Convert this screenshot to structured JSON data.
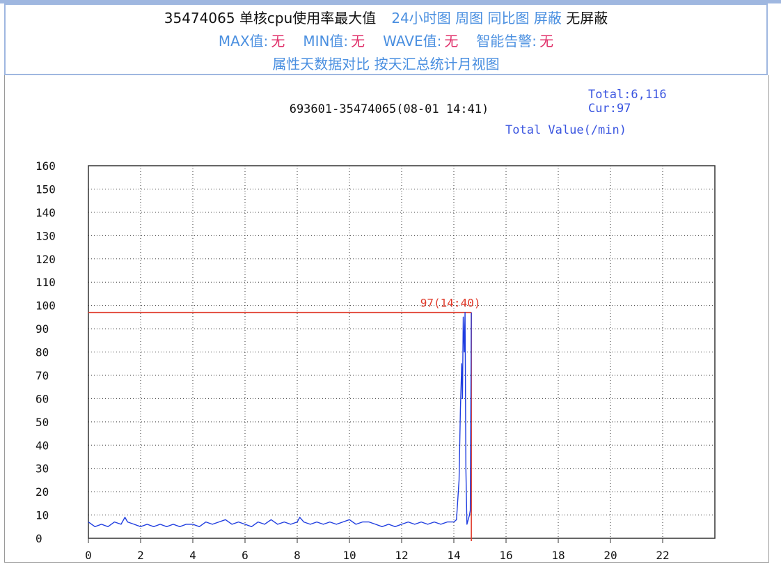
{
  "header": {
    "line1": {
      "title": "35474065 单核cpu使用率最大值",
      "links": [
        "24小时图",
        "周图",
        "同比图",
        "屏蔽"
      ],
      "status": "无屏蔽"
    },
    "line2": [
      {
        "label": "MAX值:",
        "value": "无"
      },
      {
        "label": "MIN值:",
        "value": "无"
      },
      {
        "label": "WAVE值:",
        "value": "无"
      },
      {
        "label": "智能告警:",
        "value": "无"
      }
    ],
    "line3": [
      "属性天数据对比",
      "按天汇总统计月视图"
    ]
  },
  "colors": {
    "link": "#4a8fe0",
    "value_red": "#e0306a",
    "series": "#1f3de0",
    "threshold": "#e03a2a",
    "border": "#9fb7e0"
  },
  "chart_data": {
    "type": "line",
    "title": "693601-35474065(08-01 14:41)",
    "total_label": "Total:6,116",
    "cur_label": "Cur:97",
    "value_caption": "Total Value(/min)",
    "xlim": [
      0,
      24
    ],
    "ylim": [
      0,
      160
    ],
    "x_ticks": [
      0,
      2,
      4,
      6,
      8,
      10,
      12,
      14,
      16,
      18,
      20,
      22
    ],
    "y_ticks": [
      0,
      10,
      20,
      30,
      40,
      50,
      60,
      70,
      80,
      90,
      100,
      110,
      120,
      130,
      140,
      150,
      160
    ],
    "x_gridlines": [
      0,
      2,
      4,
      6,
      8,
      10,
      12,
      14,
      16,
      18,
      20,
      22,
      24
    ],
    "grid": true,
    "max_marker": {
      "value": 97,
      "x": 14.67,
      "label": "97(14:40)"
    },
    "series": [
      {
        "x": [
          0.0,
          0.25,
          0.5,
          0.75,
          1.0,
          1.25,
          1.4,
          1.5,
          1.75,
          2.0,
          2.25,
          2.5,
          2.75,
          3.0,
          3.25,
          3.5,
          3.75,
          4.0,
          4.25,
          4.5,
          4.75,
          5.0,
          5.25,
          5.5,
          5.75,
          6.0,
          6.25,
          6.5,
          6.75,
          7.0,
          7.25,
          7.5,
          7.75,
          8.0,
          8.1,
          8.25,
          8.5,
          8.75,
          9.0,
          9.25,
          9.5,
          9.75,
          10.0,
          10.25,
          10.5,
          10.75,
          11.0,
          11.25,
          11.5,
          11.75,
          12.0,
          12.25,
          12.5,
          12.75,
          13.0,
          13.25,
          13.5,
          13.75,
          14.0,
          14.1,
          14.2,
          14.25,
          14.3,
          14.33,
          14.36,
          14.4,
          14.43,
          14.46,
          14.5,
          14.55,
          14.6,
          14.63,
          14.67
        ],
        "values": [
          7,
          5,
          6,
          5,
          7,
          6,
          9,
          7,
          6,
          5,
          6,
          5,
          6,
          5,
          6,
          5,
          6,
          6,
          5,
          7,
          6,
          7,
          8,
          6,
          7,
          6,
          5,
          7,
          6,
          8,
          6,
          7,
          6,
          7,
          9,
          7,
          6,
          7,
          6,
          7,
          6,
          7,
          8,
          6,
          7,
          7,
          6,
          5,
          6,
          5,
          6,
          7,
          6,
          7,
          6,
          7,
          6,
          7,
          7,
          8,
          25,
          55,
          75,
          60,
          95,
          80,
          97,
          30,
          6,
          8,
          10,
          12,
          97
        ]
      }
    ]
  }
}
